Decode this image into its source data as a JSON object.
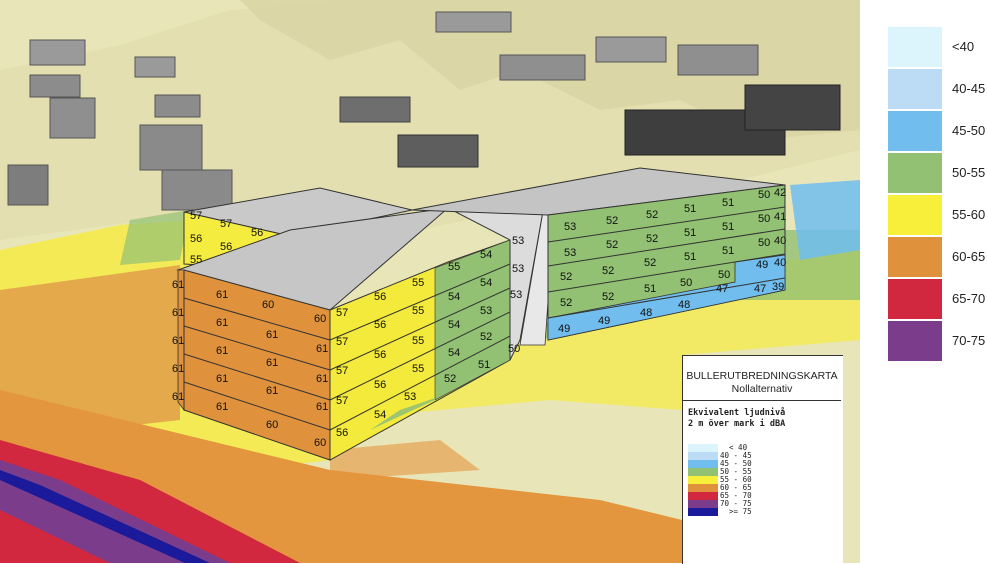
{
  "legend": {
    "items": [
      {
        "label": "<40",
        "color": "#dcf4fb"
      },
      {
        "label": "40-45",
        "color": "#bcdcf6"
      },
      {
        "label": "45-50",
        "color": "#70bdee"
      },
      {
        "label": "50-55",
        "color": "#92c173"
      },
      {
        "label": "55-60",
        "color": "#f8ef3b"
      },
      {
        "label": "60-65",
        "color": "#e0913c"
      },
      {
        "label": "65-70",
        "color": "#d1273f"
      },
      {
        "label": "70-75",
        "color": "#7b3d8b"
      }
    ]
  },
  "map_legend": {
    "title": "BULLERUTBREDNINGSKARTA",
    "subtitle": "Nollalternativ",
    "heading_line1": "Ekvivalent ljudnivå",
    "heading_line2": "2 m över mark i dBA",
    "items": [
      {
        "label": "  < 40",
        "color": "#dcf4fb"
      },
      {
        "label": "40 - 45",
        "color": "#bcdcf6"
      },
      {
        "label": "45 - 50",
        "color": "#70bdee"
      },
      {
        "label": "50 - 55",
        "color": "#92c173"
      },
      {
        "label": "55 - 60",
        "color": "#f8ef3b"
      },
      {
        "label": "60 - 65",
        "color": "#e0913c"
      },
      {
        "label": "65 - 70",
        "color": "#d1273f"
      },
      {
        "label": "70 - 75",
        "color": "#7b3d8b"
      },
      {
        "label": "  >= 75",
        "color": "#1a1a9a"
      }
    ]
  },
  "facade_values": {
    "left_block_west": [
      "61",
      "61",
      "61",
      "61",
      "61"
    ],
    "left_block_south_c1": [
      "61",
      "61",
      "61",
      "61",
      "61"
    ],
    "left_block_south_c2": [
      "60",
      "61",
      "61",
      "61",
      "60"
    ],
    "left_block_corner": [
      "60",
      "61",
      "61",
      "61",
      "60"
    ],
    "mid_c1": [
      "57",
      "57",
      "57",
      "57",
      "56"
    ],
    "mid_c2": [
      "56",
      "56",
      "56",
      "56",
      "54"
    ],
    "mid_c3": [
      "55",
      "55",
      "55",
      "55",
      "53"
    ],
    "mid_c4": [
      "55",
      "54",
      "54",
      "54",
      "52"
    ],
    "mid_c5": [
      "54",
      "54",
      "53",
      "52",
      "51"
    ],
    "mid_c6": [
      "53",
      "53",
      "53",
      "50"
    ],
    "back_block_c1": [
      "57",
      "56",
      "55"
    ],
    "back_block_c2": [
      "57",
      "56"
    ],
    "back_block_edge": [
      "56",
      "54",
      "54"
    ],
    "right_c1": [
      "53",
      "53",
      "52",
      "52",
      "49"
    ],
    "right_c2": [
      "52",
      "52",
      "52",
      "52",
      "49"
    ],
    "right_c3": [
      "52",
      "52",
      "52",
      "51",
      "48"
    ],
    "right_c4": [
      "51",
      "51",
      "51",
      "50",
      "48"
    ],
    "right_c5": [
      "51",
      "51",
      "51",
      "50",
      "47"
    ],
    "right_c6": [
      "50",
      "50",
      "50",
      "49",
      "47"
    ],
    "right_end": [
      "42",
      "41",
      "40",
      "40",
      "39"
    ]
  }
}
